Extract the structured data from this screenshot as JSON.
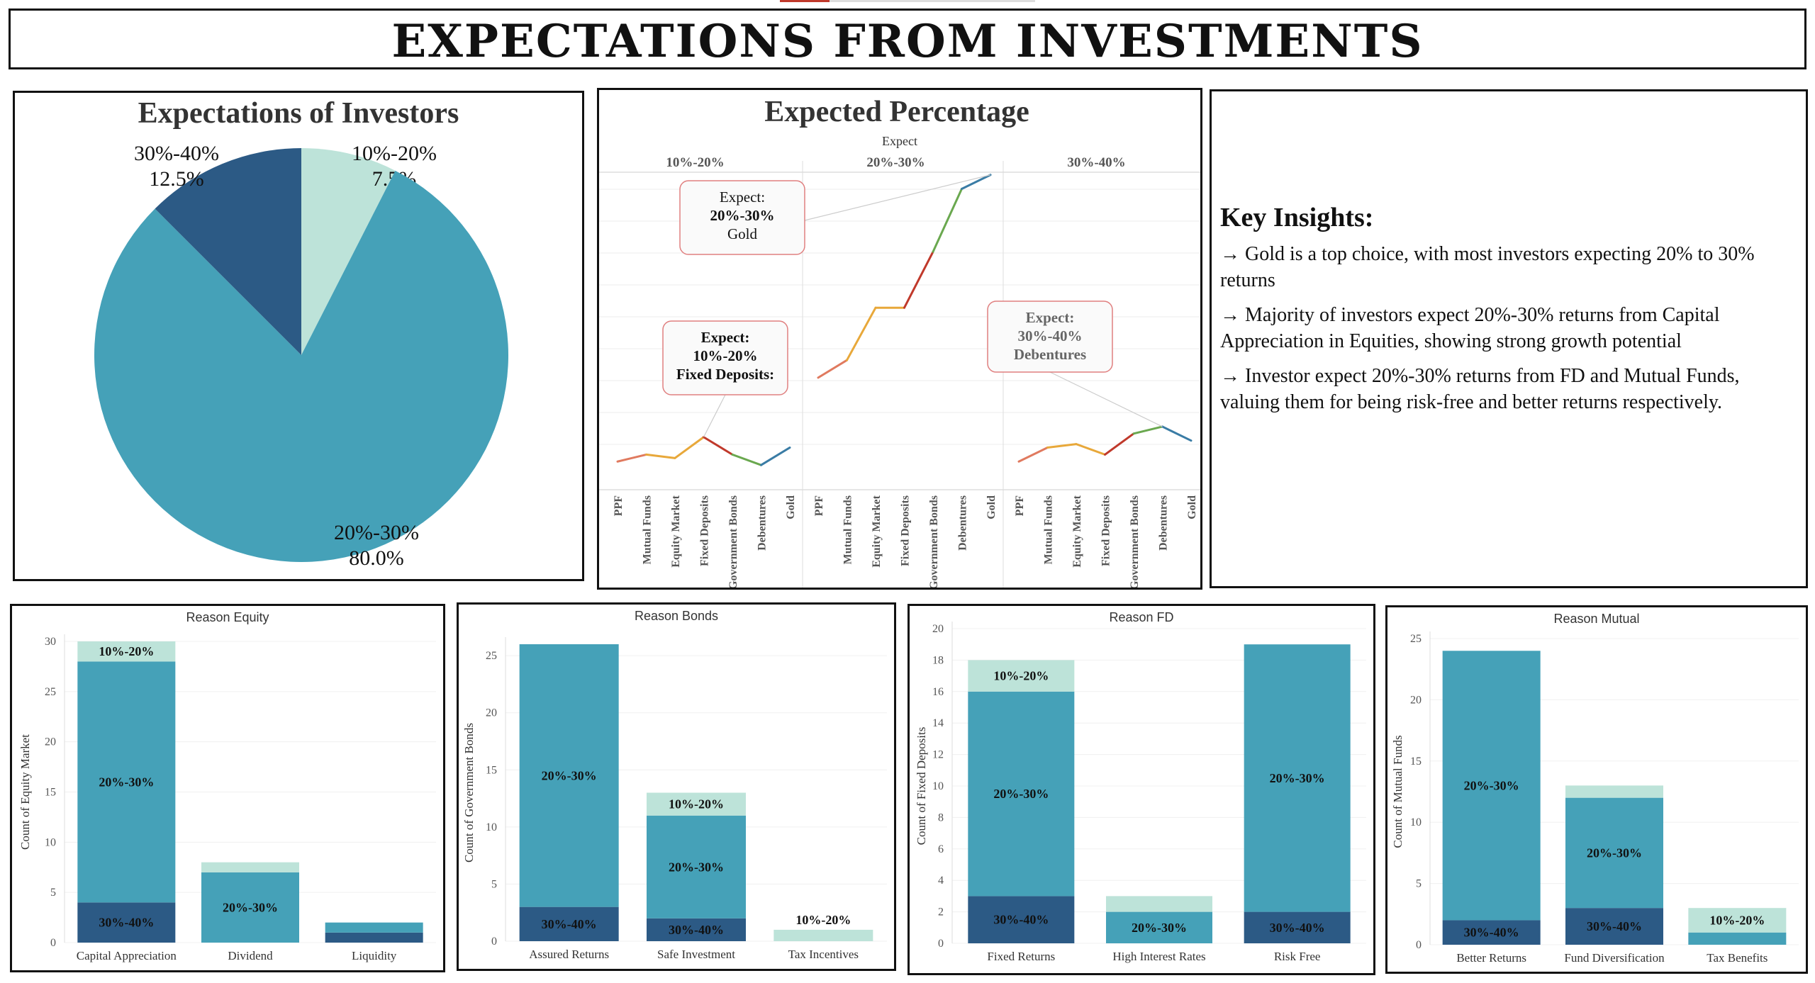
{
  "dashboard_title": "EXPECTATIONS FROM INVESTMENTS",
  "colors": {
    "low": "#bde3d9",
    "mid": "#45a1b8",
    "high": "#2c5a85"
  },
  "insights": {
    "title": "Key Insights:",
    "items": [
      "→ Gold is a top choice, with most investors expecting 20% to 30% returns",
      "→ Majority of investors expect 20%-30% returns from Capital Appreciation in Equities, showing strong growth potential",
      "→ Investor expect 20%-30% returns from FD and Mutual Funds, valuing them for being risk-free and better returns respectively."
    ]
  },
  "chart_data": [
    {
      "id": "pie",
      "type": "pie",
      "title": "Expectations of Investors",
      "slices": [
        {
          "name": "10%-20%",
          "pct_label": "7.5%",
          "value": 7.5
        },
        {
          "name": "20%-30%",
          "pct_label": "80.0%",
          "value": 80.0
        },
        {
          "name": "30%-40%",
          "pct_label": "12.5%",
          "value": 12.5
        }
      ]
    },
    {
      "id": "lines",
      "type": "line",
      "title": "Expected Percentage",
      "facet_header": "Expect",
      "categories": [
        "PPF",
        "Mutual Funds",
        "Equity Market",
        "Fixed Deposits",
        "Government Bonds",
        "Debentures",
        "Gold"
      ],
      "ylim": [
        0,
        45
      ],
      "grid": true,
      "panels": [
        {
          "name": "10%-20%",
          "values": [
            2,
            3,
            2.5,
            5.5,
            3,
            1.5,
            4
          ]
        },
        {
          "name": "20%-30%",
          "values": [
            14,
            16.5,
            24,
            24,
            32,
            41,
            43
          ]
        },
        {
          "name": "30%-40%",
          "values": [
            2,
            4,
            4.5,
            3,
            6,
            7,
            5
          ]
        }
      ],
      "annotations": [
        {
          "line1": "Expect:",
          "line2": "20%-30%",
          "line3": "Gold",
          "panel": 1,
          "cat": 6
        },
        {
          "line1": "Expect:",
          "line2": "10%-20%",
          "line3": "Fixed Deposits:",
          "panel": 0,
          "cat": 3
        },
        {
          "line1": "Expect:",
          "line2": "30%-40%",
          "line3": "Debentures",
          "panel": 2,
          "cat": 5
        }
      ]
    },
    {
      "id": "equity",
      "type": "bar",
      "title": "Reason Equity",
      "ylabel": "Count of Equity Market",
      "ymax": 30,
      "yticks": [
        0,
        5,
        10,
        15,
        20,
        25,
        30
      ],
      "categories": [
        "Capital Appreciation",
        "Dividend",
        "Liquidity"
      ],
      "series": [
        {
          "name": "30%-40%",
          "values": [
            4,
            0,
            1
          ]
        },
        {
          "name": "20%-30%",
          "values": [
            24,
            7,
            1
          ]
        },
        {
          "name": "10%-20%",
          "values": [
            2,
            1,
            0
          ]
        }
      ],
      "labels": [
        {
          "text": "10%-20%",
          "cat": 0,
          "series": 2
        },
        {
          "text": "20%-30%",
          "cat": 0,
          "series": 1
        },
        {
          "text": "30%-40%",
          "cat": 0,
          "series": 0
        },
        {
          "text": "20%-30%",
          "cat": 1,
          "series": 1
        }
      ]
    },
    {
      "id": "bonds",
      "type": "bar",
      "title": "Reason Bonds",
      "ylabel": "Count of Government Bonds",
      "ymax": 26,
      "yticks": [
        0,
        5,
        10,
        15,
        20,
        25
      ],
      "categories": [
        "Assured Returns",
        "Safe Investment",
        "Tax Incentives"
      ],
      "series": [
        {
          "name": "30%-40%",
          "values": [
            3,
            2,
            0
          ]
        },
        {
          "name": "20%-30%",
          "values": [
            23,
            9,
            0
          ]
        },
        {
          "name": "10%-20%",
          "values": [
            0,
            2,
            1
          ]
        }
      ],
      "labels": [
        {
          "text": "20%-30%",
          "cat": 0,
          "series": 1
        },
        {
          "text": "30%-40%",
          "cat": 0,
          "series": 0
        },
        {
          "text": "10%-20%",
          "cat": 1,
          "series": 2
        },
        {
          "text": "20%-30%",
          "cat": 1,
          "series": 1
        },
        {
          "text": "30%-40%",
          "cat": 1,
          "series": 0
        },
        {
          "text": "10%-20%",
          "cat": 2,
          "series": 2,
          "above": true
        }
      ]
    },
    {
      "id": "fd",
      "type": "bar",
      "title": "Reason FD",
      "ylabel": "Count of Fixed Deposits",
      "ymax": 20,
      "yticks": [
        0,
        2,
        4,
        6,
        8,
        10,
        12,
        14,
        16,
        18,
        20
      ],
      "categories": [
        "Fixed Returns",
        "High Interest Rates",
        "Risk Free"
      ],
      "series": [
        {
          "name": "30%-40%",
          "values": [
            3,
            0,
            2
          ]
        },
        {
          "name": "20%-30%",
          "values": [
            13,
            2,
            17
          ]
        },
        {
          "name": "10%-20%",
          "values": [
            2,
            1,
            0
          ]
        }
      ],
      "labels": [
        {
          "text": "10%-20%",
          "cat": 0,
          "series": 2
        },
        {
          "text": "20%-30%",
          "cat": 0,
          "series": 1
        },
        {
          "text": "30%-40%",
          "cat": 0,
          "series": 0
        },
        {
          "text": "20%-30%",
          "cat": 1,
          "series": 1
        },
        {
          "text": "20%-30%",
          "cat": 2,
          "series": 1
        },
        {
          "text": "30%-40%",
          "cat": 2,
          "series": 0
        }
      ]
    },
    {
      "id": "mutual",
      "type": "bar",
      "title": "Reason Mutual",
      "ylabel": "Count of Mutual Funds",
      "ymax": 25,
      "yticks": [
        0,
        5,
        10,
        15,
        20,
        25
      ],
      "categories": [
        "Better Returns",
        "Fund Diversification",
        "Tax Benefits"
      ],
      "series": [
        {
          "name": "30%-40%",
          "values": [
            2,
            3,
            0
          ]
        },
        {
          "name": "20%-30%",
          "values": [
            22,
            9,
            1
          ]
        },
        {
          "name": "10%-20%",
          "values": [
            0,
            1,
            2
          ]
        }
      ],
      "labels": [
        {
          "text": "20%-30%",
          "cat": 0,
          "series": 1
        },
        {
          "text": "30%-40%",
          "cat": 0,
          "series": 0
        },
        {
          "text": "20%-30%",
          "cat": 1,
          "series": 1
        },
        {
          "text": "30%-40%",
          "cat": 1,
          "series": 0
        },
        {
          "text": "10%-20%",
          "cat": 2,
          "series": 2
        }
      ]
    }
  ]
}
